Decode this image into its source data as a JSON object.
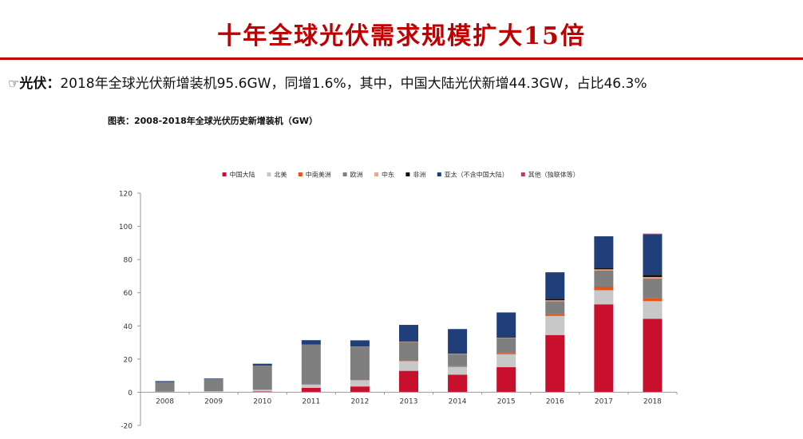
{
  "page": {
    "title": "十年全球光伏需求规模扩大15倍",
    "bullet_hand": "☞",
    "bullet_lead": "光伏：",
    "bullet_text": "2018年全球光伏新增装机95.6GW，同增1.6%，其中，中国大陆光伏新增44.3GW，占比46.3%",
    "chart_caption": "图表：2008-2018年全球光伏历史新增装机（GW）"
  },
  "colors": {
    "title": "#c00000"
  },
  "chart_data": {
    "type": "bar",
    "stacked": true,
    "categories": [
      "2008",
      "2009",
      "2010",
      "2011",
      "2012",
      "2013",
      "2014",
      "2015",
      "2016",
      "2017",
      "2018"
    ],
    "ylim": [
      -20,
      120
    ],
    "yticks": [
      -20,
      0,
      20,
      40,
      60,
      80,
      100,
      120
    ],
    "grid": false,
    "legend_position": "top",
    "series": [
      {
        "name": "中国大陆",
        "color": "#c8102e",
        "values": [
          0.05,
          0.16,
          0.5,
          2.7,
          3.5,
          12.9,
          10.6,
          15.1,
          34.5,
          53.0,
          44.3
        ]
      },
      {
        "name": "北美",
        "color": "#c8c8c8",
        "values": [
          0.3,
          0.5,
          1.0,
          1.9,
          3.7,
          5.8,
          4.7,
          7.8,
          11.5,
          8.5,
          10.6
        ]
      },
      {
        "name": "中南美洲",
        "color": "#e2541a",
        "values": [
          0.0,
          0.0,
          0.0,
          0.1,
          0.1,
          0.2,
          0.4,
          0.8,
          1.2,
          2.2,
          2.0
        ]
      },
      {
        "name": "欧洲",
        "color": "#7f7f7f",
        "values": [
          5.8,
          7.4,
          14.6,
          23.9,
          20.0,
          11.3,
          7.2,
          8.8,
          7.7,
          9.7,
          11.6
        ]
      },
      {
        "name": "中东",
        "color": "#f4a582",
        "values": [
          0.0,
          0.0,
          0.0,
          0.1,
          0.1,
          0.2,
          0.3,
          0.3,
          0.5,
          0.7,
          0.9
        ]
      },
      {
        "name": "非洲",
        "color": "#111111",
        "values": [
          0.0,
          0.0,
          0.0,
          0.1,
          0.1,
          0.2,
          0.3,
          0.5,
          0.9,
          1.0,
          1.4
        ]
      },
      {
        "name": "亚太（不含中国大陆）",
        "color": "#203f7a",
        "values": [
          0.6,
          0.3,
          1.1,
          2.6,
          3.8,
          10.0,
          14.6,
          14.8,
          16.0,
          18.9,
          24.2
        ]
      },
      {
        "name": "其他（独联体等）",
        "color": "#d6305a",
        "values": [
          0.0,
          0.0,
          0.0,
          0.0,
          0.0,
          0.0,
          0.0,
          0.0,
          0.0,
          0.0,
          0.6
        ]
      }
    ],
    "xlabel": "",
    "ylabel": ""
  }
}
